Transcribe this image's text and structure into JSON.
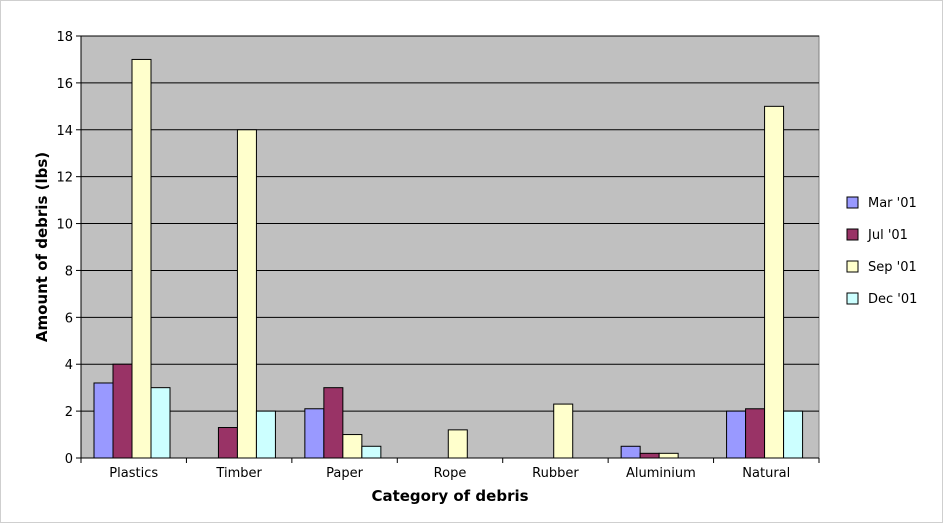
{
  "chart_data": {
    "type": "bar",
    "title": "",
    "xlabel": "Category of debris",
    "ylabel": "Amount of debris (lbs)",
    "ylim": [
      0,
      18
    ],
    "yticks": [
      0,
      2,
      4,
      6,
      8,
      10,
      12,
      14,
      16,
      18
    ],
    "grid": true,
    "legend_position": "right",
    "plot_background": "#c0c0c0",
    "categories": [
      "Plastics",
      "Timber",
      "Paper",
      "Rope",
      "Rubber",
      "Aluminium",
      "Natural"
    ],
    "series": [
      {
        "name": "Mar '01",
        "color": "#9999ff",
        "values": [
          3.2,
          0,
          2.1,
          0,
          0,
          0.5,
          2.0
        ]
      },
      {
        "name": "Jul '01",
        "color": "#993366",
        "values": [
          4.0,
          1.3,
          3.0,
          0,
          0,
          0.2,
          2.1
        ]
      },
      {
        "name": "Sep '01",
        "color": "#ffffcc",
        "values": [
          17.0,
          14.0,
          1.0,
          1.2,
          2.3,
          0.2,
          15.0
        ]
      },
      {
        "name": "Dec '01",
        "color": "#ccffff",
        "values": [
          3.0,
          2.0,
          0.5,
          0,
          0,
          0,
          2.0
        ]
      }
    ]
  }
}
